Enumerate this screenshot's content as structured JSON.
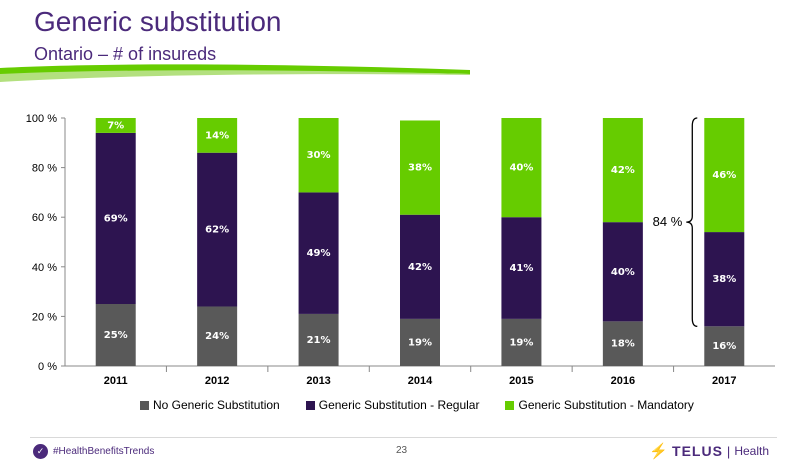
{
  "header": {
    "title": "Generic substitution",
    "subtitle": "Ontario – # of insureds"
  },
  "colors": {
    "purple": "#4b2a7b",
    "green": "#66cc00",
    "no_generic": "#595959",
    "regular": "#2d1450",
    "mandatory": "#66cc00"
  },
  "chart_data": {
    "type": "bar",
    "stacked": true,
    "categories": [
      "2011",
      "2012",
      "2013",
      "2014",
      "2015",
      "2016",
      "2017"
    ],
    "y_ticks": [
      "0 %",
      "20 %",
      "40 %",
      "60 %",
      "80 %",
      "100 %"
    ],
    "ylim": [
      0,
      100
    ],
    "legend_position": "bottom",
    "series": [
      {
        "name": "No Generic Substitution",
        "values": [
          25,
          24,
          21,
          19,
          19,
          18,
          16
        ],
        "labels": [
          "25%",
          "24%",
          "21%",
          "19%",
          "19%",
          "18%",
          "16%"
        ]
      },
      {
        "name": "Generic Substitution - Regular",
        "values": [
          69,
          62,
          49,
          42,
          41,
          40,
          38
        ],
        "labels": [
          "69%",
          "62%",
          "49%",
          "42%",
          "41%",
          "40%",
          "38%"
        ]
      },
      {
        "name": "Generic Substitution - Mandatory",
        "values": [
          7,
          14,
          30,
          38,
          40,
          42,
          46
        ],
        "labels": [
          "7%",
          "14%",
          "30%",
          "38%",
          "40%",
          "42%",
          "46%"
        ]
      }
    ],
    "annotation": "84 %"
  },
  "footer": {
    "twitter_icon": "twitter-bird-icon",
    "hashtag": "#HealthBenefitsTrends",
    "page_number": "23",
    "brand_name": "TELUS",
    "brand_sub": "Health",
    "brand_sep": "|"
  }
}
